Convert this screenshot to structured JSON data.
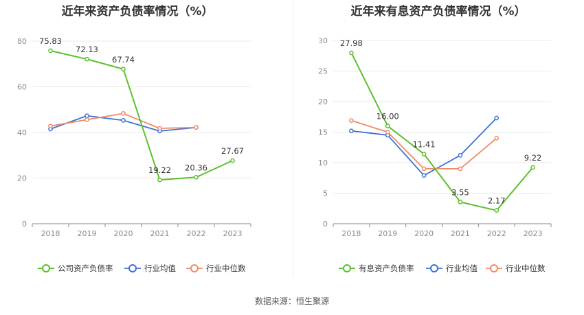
{
  "source_text": "数据来源：恒生聚源",
  "chart_data": [
    {
      "type": "line",
      "title": "近年来资产负债率情况（%）",
      "xlabel": "",
      "ylabel": "",
      "ylim": [
        0,
        80
      ],
      "yticks": [
        "0",
        "20",
        "40",
        "60",
        "80"
      ],
      "categories": [
        "2018",
        "2019",
        "2020",
        "2021",
        "2022",
        "2023"
      ],
      "grid": true,
      "legend_position": "bottom",
      "series": [
        {
          "name": "公司资产负债率",
          "color": "#5bc02b",
          "values": [
            75.83,
            72.13,
            67.74,
            19.22,
            20.36,
            27.67
          ],
          "labels": [
            "75.83",
            "72.13",
            "67.74",
            "19.22",
            "20.36",
            "27.67"
          ]
        },
        {
          "name": "行业均值",
          "color": "#3b72d6",
          "values": [
            41.5,
            47.3,
            45.3,
            40.6,
            42.2,
            null
          ],
          "labels": []
        },
        {
          "name": "行业中位数",
          "color": "#f08a65",
          "values": [
            42.8,
            45.6,
            48.3,
            41.8,
            42.2,
            null
          ],
          "labels": []
        }
      ]
    },
    {
      "type": "line",
      "title": "近年来有息资产负债率情况（%）",
      "xlabel": "",
      "ylabel": "",
      "ylim": [
        0,
        30
      ],
      "yticks": [
        "0",
        "5",
        "10",
        "15",
        "20",
        "25",
        "30"
      ],
      "categories": [
        "2018",
        "2019",
        "2020",
        "2021",
        "2022",
        "2023"
      ],
      "grid": true,
      "legend_position": "bottom",
      "series": [
        {
          "name": "有息资产负债率",
          "color": "#5bc02b",
          "values": [
            27.98,
            16.0,
            11.41,
            3.55,
            2.17,
            9.22
          ],
          "labels": [
            "27.98",
            "16.00",
            "11.41",
            "3.55",
            "2.17",
            "9.22"
          ]
        },
        {
          "name": "行业均值",
          "color": "#3b72d6",
          "values": [
            15.2,
            14.5,
            7.9,
            11.2,
            17.3,
            null
          ],
          "labels": []
        },
        {
          "name": "行业中位数",
          "color": "#f08a65",
          "values": [
            16.9,
            15.0,
            9.0,
            9.0,
            14.0,
            null
          ],
          "labels": []
        }
      ]
    }
  ]
}
